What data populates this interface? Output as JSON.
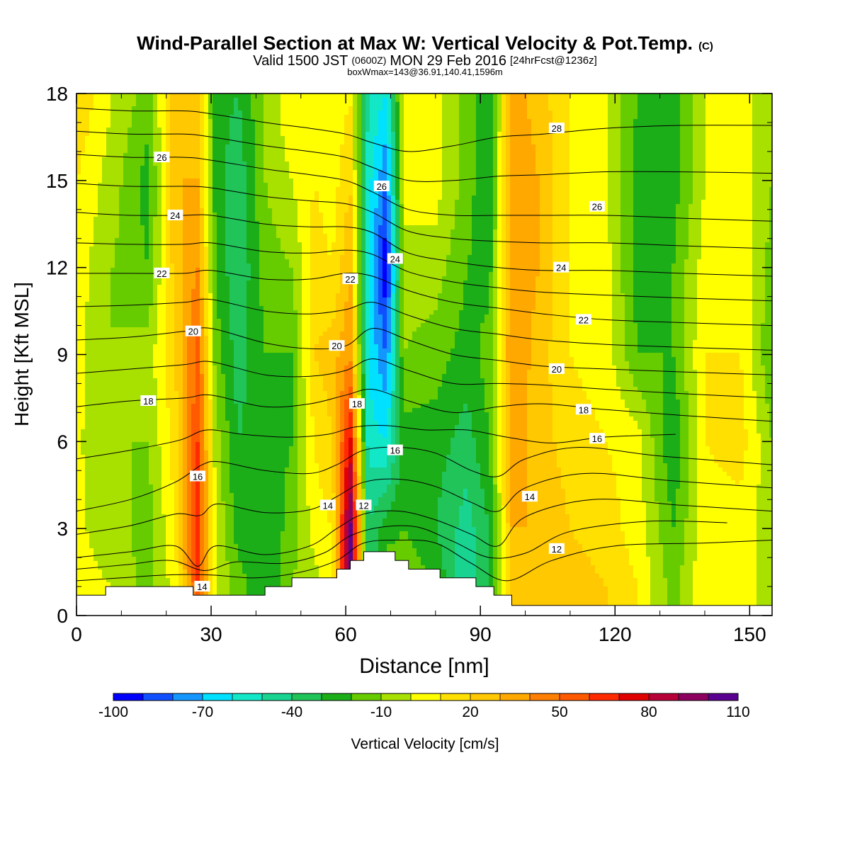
{
  "chart_data": {
    "type": "heatmap",
    "title": "Wind-Parallel Section at Max W: Vertical Velocity & Pot.Temp.",
    "title_mark": "(C)",
    "subtitle_parts": [
      "Valid 1500 JST",
      "(0600Z)",
      "MON 29 Feb 2016",
      "[24hrFcst@1236z]"
    ],
    "subtitle2": "boxWmax=143@36.91,140.41,1596m",
    "xlabel": "Distance [nm]",
    "ylabel": "Height [Kft MSL]",
    "xlim": [
      0,
      155
    ],
    "ylim": [
      0,
      18
    ],
    "xticks": [
      "0",
      "30",
      "60",
      "90",
      "120",
      "150"
    ],
    "yticks": [
      "0",
      "3",
      "6",
      "9",
      "12",
      "15",
      "18"
    ],
    "colorbar": {
      "label": "Vertical Velocity [cm/s]",
      "min": -100,
      "max": 110,
      "step": 10,
      "tick_labels": [
        "-100",
        "-70",
        "-40",
        "-10",
        "20",
        "50",
        "80",
        "110"
      ],
      "colors": [
        "#0000ff",
        "#0f4fff",
        "#1496ff",
        "#00e0ff",
        "#12e8c8",
        "#18d490",
        "#20c458",
        "#1cae18",
        "#66cc00",
        "#a8e000",
        "#ffff00",
        "#ffe000",
        "#ffc800",
        "#ffa800",
        "#ff8000",
        "#ff5a00",
        "#ff2a00",
        "#e00000",
        "#b80038",
        "#8c0060",
        "#5a0090"
      ]
    },
    "field_w": [
      {
        "x": 0,
        "w": [
          3,
          2,
          2,
          3,
          5,
          10,
          20
        ]
      },
      {
        "x": 8,
        "w": [
          0,
          -5,
          -10,
          -10,
          -10,
          -5,
          0
        ]
      },
      {
        "x": 16,
        "w": [
          -15,
          -15,
          -10,
          -5,
          -20,
          -25,
          -15
        ]
      },
      {
        "x": 22,
        "w": [
          5,
          10,
          15,
          20,
          25,
          30,
          25
        ]
      },
      {
        "x": 27,
        "w": [
          60,
          65,
          60,
          55,
          40,
          30,
          25
        ]
      },
      {
        "x": 31,
        "w": [
          0,
          0,
          -5,
          -15,
          -20,
          -25,
          -25
        ]
      },
      {
        "x": 36,
        "w": [
          -15,
          -25,
          -30,
          -35,
          -40,
          -38,
          -30
        ]
      },
      {
        "x": 42,
        "w": [
          -30,
          -30,
          -25,
          -20,
          -15,
          -10,
          -10
        ]
      },
      {
        "x": 48,
        "w": [
          -10,
          -15,
          -20,
          -20,
          -10,
          0,
          10
        ]
      },
      {
        "x": 53,
        "w": [
          -5,
          5,
          10,
          20,
          15,
          10,
          10
        ]
      },
      {
        "x": 57,
        "w": [
          5,
          10,
          20,
          25,
          10,
          5,
          0
        ]
      },
      {
        "x": 61,
        "w": [
          110,
          105,
          75,
          40,
          30,
          20,
          10
        ]
      },
      {
        "x": 65,
        "w": [
          -40,
          -40,
          -55,
          -60,
          -60,
          -55,
          -50
        ]
      },
      {
        "x": 69,
        "w": [
          -10,
          -25,
          -60,
          -80,
          -100,
          -80,
          -60
        ]
      },
      {
        "x": 73,
        "w": [
          -10,
          -20,
          -25,
          -10,
          -5,
          5,
          5
        ]
      },
      {
        "x": 80,
        "w": [
          -20,
          -30,
          -25,
          -15,
          -5,
          5,
          5
        ]
      },
      {
        "x": 87,
        "w": [
          -50,
          -45,
          -35,
          -25,
          -20,
          -15,
          -15
        ]
      },
      {
        "x": 92,
        "w": [
          -30,
          -30,
          -20,
          -15,
          -25,
          -30,
          -30
        ]
      },
      {
        "x": 97,
        "w": [
          20,
          30,
          35,
          40,
          40,
          40,
          35
        ]
      },
      {
        "x": 103,
        "w": [
          30,
          30,
          25,
          25,
          30,
          30,
          25
        ]
      },
      {
        "x": 110,
        "w": [
          25,
          20,
          15,
          10,
          10,
          10,
          10
        ]
      },
      {
        "x": 118,
        "w": [
          20,
          15,
          10,
          5,
          5,
          0,
          0
        ]
      },
      {
        "x": 125,
        "w": [
          10,
          5,
          5,
          -20,
          -25,
          -25,
          -20
        ]
      },
      {
        "x": 133,
        "w": [
          -15,
          -20,
          -30,
          -20,
          -20,
          -25,
          -25
        ]
      },
      {
        "x": 140,
        "w": [
          10,
          5,
          10,
          10,
          5,
          0,
          0
        ]
      },
      {
        "x": 148,
        "w": [
          5,
          5,
          15,
          10,
          10,
          5,
          5
        ]
      },
      {
        "x": 155,
        "w": [
          -5,
          -5,
          -10,
          -20,
          -15,
          -10,
          -10
        ]
      }
    ],
    "field_heights": [
      1,
      3,
      6,
      9,
      12,
      15,
      18
    ],
    "terrain": [
      [
        0,
        0.7
      ],
      [
        6.5,
        0.7
      ],
      [
        6.5,
        1.0
      ],
      [
        26,
        1.0
      ],
      [
        26,
        0.7
      ],
      [
        42,
        0.7
      ],
      [
        42,
        1.0
      ],
      [
        48,
        1.0
      ],
      [
        48,
        1.3
      ],
      [
        58,
        1.3
      ],
      [
        58,
        1.6
      ],
      [
        61,
        1.6
      ],
      [
        61,
        1.9
      ],
      [
        64,
        1.9
      ],
      [
        64,
        2.2
      ],
      [
        71,
        2.2
      ],
      [
        71,
        1.9
      ],
      [
        74,
        1.9
      ],
      [
        74,
        1.6
      ],
      [
        81,
        1.6
      ],
      [
        81,
        1.3
      ],
      [
        89,
        1.3
      ],
      [
        89,
        1.0
      ],
      [
        93,
        1.0
      ],
      [
        93,
        0.7
      ],
      [
        97,
        0.7
      ],
      [
        97,
        0.35
      ],
      [
        155,
        0.35
      ]
    ],
    "isentropes": [
      {
        "theta": 12,
        "pts": [
          [
            0,
            1.2
          ],
          [
            10,
            1.3
          ],
          [
            20,
            1.4
          ],
          [
            30,
            1.4
          ],
          [
            40,
            1.3
          ],
          [
            50,
            1.5
          ],
          [
            58,
            1.9
          ],
          [
            64,
            2.5
          ],
          [
            72,
            2.6
          ],
          [
            80,
            2.5
          ],
          [
            88,
            1.8
          ],
          [
            96,
            1.2
          ],
          [
            106,
            1.9
          ],
          [
            120,
            2.4
          ],
          [
            140,
            2.5
          ],
          [
            155,
            2.6
          ]
        ]
      },
      {
        "theta": 14,
        "pts": [
          [
            0,
            2.0
          ],
          [
            12,
            2.2
          ],
          [
            22,
            2.4
          ],
          [
            27,
            1.7
          ],
          [
            31,
            2.4
          ],
          [
            42,
            2.1
          ],
          [
            52,
            2.4
          ],
          [
            58,
            3.0
          ],
          [
            64,
            3.5
          ],
          [
            72,
            3.6
          ],
          [
            80,
            3.3
          ],
          [
            88,
            2.8
          ],
          [
            94,
            2.4
          ],
          [
            100,
            3.4
          ],
          [
            115,
            4.0
          ],
          [
            135,
            3.8
          ],
          [
            155,
            3.6
          ]
        ]
      },
      {
        "theta": 16,
        "pts": [
          [
            0,
            3.6
          ],
          [
            12,
            4.0
          ],
          [
            22,
            4.6
          ],
          [
            28,
            5.2
          ],
          [
            32,
            5.3
          ],
          [
            42,
            5.0
          ],
          [
            52,
            4.9
          ],
          [
            58,
            5.2
          ],
          [
            64,
            5.7
          ],
          [
            72,
            5.8
          ],
          [
            80,
            5.6
          ],
          [
            88,
            5.0
          ],
          [
            94,
            4.8
          ],
          [
            100,
            5.4
          ],
          [
            112,
            5.8
          ],
          [
            130,
            5.5
          ],
          [
            155,
            5.2
          ]
        ]
      },
      {
        "theta": 18,
        "pts": [
          [
            0,
            7.2
          ],
          [
            12,
            7.4
          ],
          [
            24,
            7.5
          ],
          [
            30,
            7.6
          ],
          [
            42,
            7.2
          ],
          [
            52,
            7.3
          ],
          [
            60,
            7.6
          ],
          [
            66,
            7.8
          ],
          [
            74,
            7.4
          ],
          [
            84,
            7.0
          ],
          [
            94,
            7.2
          ],
          [
            104,
            7.3
          ],
          [
            118,
            7.1
          ],
          [
            135,
            6.9
          ],
          [
            155,
            6.7
          ]
        ]
      },
      {
        "theta": 20,
        "pts": [
          [
            0,
            9.5
          ],
          [
            12,
            9.6
          ],
          [
            24,
            9.8
          ],
          [
            30,
            9.9
          ],
          [
            42,
            9.4
          ],
          [
            52,
            9.2
          ],
          [
            60,
            9.3
          ],
          [
            66,
            9.9
          ],
          [
            74,
            9.5
          ],
          [
            84,
            9.0
          ],
          [
            94,
            8.8
          ],
          [
            104,
            8.6
          ],
          [
            118,
            8.5
          ],
          [
            135,
            8.4
          ],
          [
            155,
            8.3
          ]
        ]
      },
      {
        "theta": 22,
        "pts": [
          [
            0,
            11.8
          ],
          [
            12,
            11.8
          ],
          [
            24,
            11.8
          ],
          [
            30,
            11.9
          ],
          [
            42,
            11.6
          ],
          [
            52,
            11.6
          ],
          [
            60,
            11.8
          ],
          [
            66,
            11.7
          ],
          [
            74,
            11.2
          ],
          [
            84,
            10.8
          ],
          [
            94,
            10.6
          ],
          [
            104,
            10.4
          ],
          [
            118,
            10.2
          ],
          [
            135,
            10.1
          ],
          [
            155,
            10.0
          ]
        ]
      },
      {
        "theta": 24,
        "pts": [
          [
            0,
            13.9
          ],
          [
            12,
            13.8
          ],
          [
            24,
            13.8
          ],
          [
            30,
            13.8
          ],
          [
            42,
            13.5
          ],
          [
            52,
            13.4
          ],
          [
            60,
            13.4
          ],
          [
            66,
            13.2
          ],
          [
            74,
            12.5
          ],
          [
            84,
            12.2
          ],
          [
            94,
            12.0
          ],
          [
            104,
            11.9
          ],
          [
            118,
            11.9
          ],
          [
            135,
            11.8
          ],
          [
            155,
            11.7
          ]
        ]
      },
      {
        "theta": 26,
        "pts": [
          [
            0,
            15.9
          ],
          [
            12,
            15.8
          ],
          [
            24,
            15.8
          ],
          [
            30,
            15.7
          ],
          [
            42,
            15.4
          ],
          [
            52,
            15.2
          ],
          [
            60,
            15.0
          ],
          [
            66,
            14.6
          ],
          [
            74,
            14.0
          ],
          [
            84,
            13.8
          ],
          [
            94,
            13.8
          ],
          [
            104,
            13.8
          ],
          [
            118,
            13.8
          ],
          [
            135,
            13.7
          ],
          [
            155,
            13.6
          ]
        ]
      },
      {
        "theta": 28,
        "pts": [
          [
            0,
            17.5
          ],
          [
            12,
            17.4
          ],
          [
            24,
            17.4
          ],
          [
            30,
            17.3
          ],
          [
            42,
            17.0
          ],
          [
            52,
            16.8
          ],
          [
            60,
            16.6
          ],
          [
            66,
            16.3
          ],
          [
            74,
            16.0
          ],
          [
            84,
            16.2
          ],
          [
            94,
            16.5
          ],
          [
            104,
            16.6
          ],
          [
            118,
            16.8
          ],
          [
            135,
            16.9
          ],
          [
            155,
            16.9
          ]
        ]
      }
    ],
    "contour_labels": [
      {
        "text": "28",
        "x": 107,
        "y": 16.8
      },
      {
        "text": "26",
        "x": 19,
        "y": 15.8
      },
      {
        "text": "26",
        "x": 68,
        "y": 14.8
      },
      {
        "text": "26",
        "x": 116,
        "y": 14.1
      },
      {
        "text": "24",
        "x": 22,
        "y": 13.8
      },
      {
        "text": "24",
        "x": 71,
        "y": 12.3
      },
      {
        "text": "24",
        "x": 108,
        "y": 12.0
      },
      {
        "text": "22",
        "x": 19,
        "y": 11.8
      },
      {
        "text": "22",
        "x": 61,
        "y": 11.6
      },
      {
        "text": "22",
        "x": 113,
        "y": 10.2
      },
      {
        "text": "20",
        "x": 26,
        "y": 9.8
      },
      {
        "text": "20",
        "x": 58,
        "y": 9.3
      },
      {
        "text": "20",
        "x": 107,
        "y": 8.5
      },
      {
        "text": "18",
        "x": 16,
        "y": 7.4
      },
      {
        "text": "18",
        "x": 62.5,
        "y": 7.3
      },
      {
        "text": "18",
        "x": 113,
        "y": 7.1
      },
      {
        "text": "16",
        "x": 27,
        "y": 4.8
      },
      {
        "text": "16",
        "x": 71,
        "y": 5.7
      },
      {
        "text": "16",
        "x": 116,
        "y": 6.1
      },
      {
        "text": "14",
        "x": 56,
        "y": 3.8
      },
      {
        "text": "14",
        "x": 101,
        "y": 4.1
      },
      {
        "text": "12",
        "x": 64,
        "y": 3.8
      },
      {
        "text": "12",
        "x": 107,
        "y": 2.3
      },
      {
        "text": "14",
        "x": 28,
        "y": 1.0
      }
    ]
  }
}
